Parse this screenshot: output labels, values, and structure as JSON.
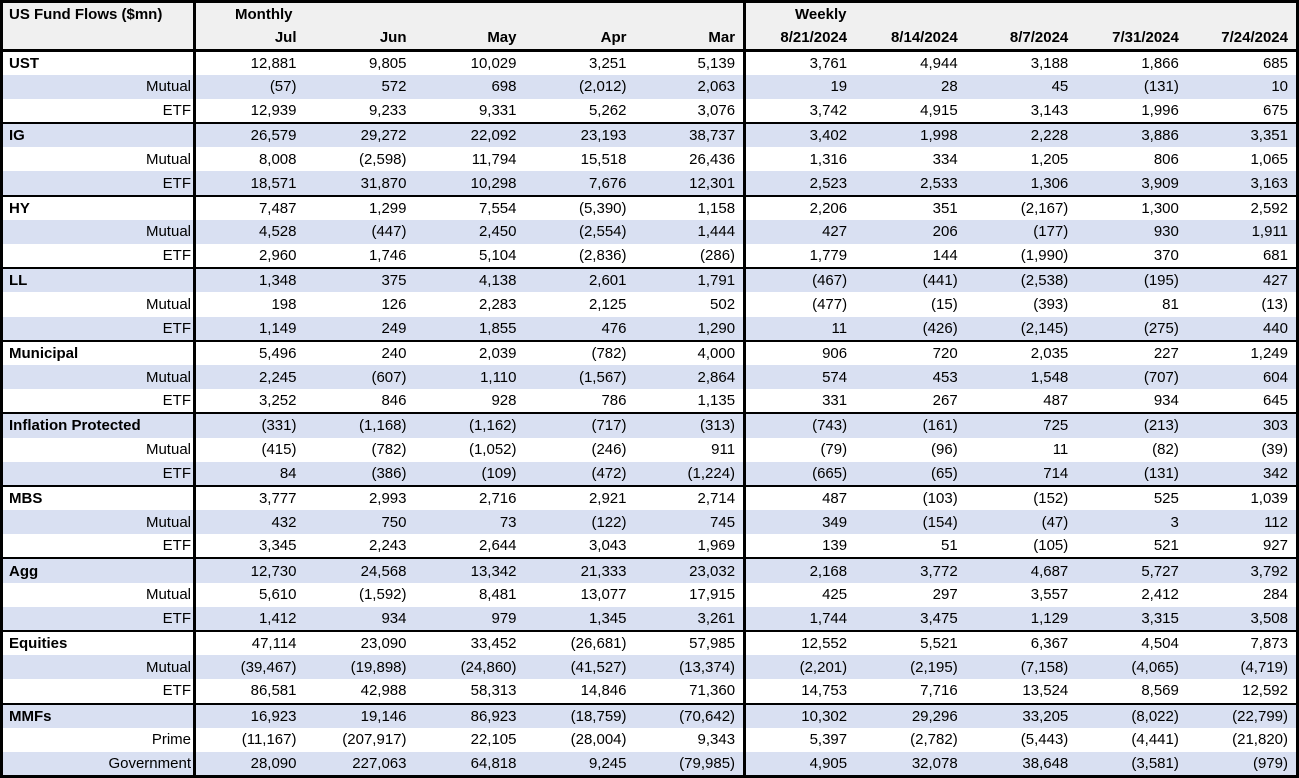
{
  "colors": {
    "stripe": "#d9e0f2",
    "header_bg": "#f0f0f0",
    "border": "#000000"
  },
  "chart_data": {
    "type": "table",
    "title": "US Fund Flows ($mn)",
    "sections": [
      {
        "label": "Monthly",
        "columns": [
          "Jul",
          "Jun",
          "May",
          "Apr",
          "Mar"
        ]
      },
      {
        "label": "Weekly",
        "columns": [
          "8/21/2024",
          "8/14/2024",
          "8/7/2024",
          "7/31/2024",
          "7/24/2024"
        ]
      }
    ],
    "groups": [
      {
        "name": "UST",
        "rows": [
          {
            "label": "UST",
            "values": [
              "12,881",
              "9,805",
              "10,029",
              "3,251",
              "5,139",
              "3,761",
              "4,944",
              "3,188",
              "1,866",
              "685"
            ]
          },
          {
            "label": "Mutual",
            "values": [
              "(57)",
              "572",
              "698",
              "(2,012)",
              "2,063",
              "19",
              "28",
              "45",
              "(131)",
              "10"
            ]
          },
          {
            "label": "ETF",
            "values": [
              "12,939",
              "9,233",
              "9,331",
              "5,262",
              "3,076",
              "3,742",
              "4,915",
              "3,143",
              "1,996",
              "675"
            ]
          }
        ]
      },
      {
        "name": "IG",
        "rows": [
          {
            "label": "IG",
            "values": [
              "26,579",
              "29,272",
              "22,092",
              "23,193",
              "38,737",
              "3,402",
              "1,998",
              "2,228",
              "3,886",
              "3,351"
            ]
          },
          {
            "label": "Mutual",
            "values": [
              "8,008",
              "(2,598)",
              "11,794",
              "15,518",
              "26,436",
              "1,316",
              "334",
              "1,205",
              "806",
              "1,065"
            ]
          },
          {
            "label": "ETF",
            "values": [
              "18,571",
              "31,870",
              "10,298",
              "7,676",
              "12,301",
              "2,523",
              "2,533",
              "1,306",
              "3,909",
              "3,163"
            ]
          }
        ]
      },
      {
        "name": "HY",
        "rows": [
          {
            "label": "HY",
            "values": [
              "7,487",
              "1,299",
              "7,554",
              "(5,390)",
              "1,158",
              "2,206",
              "351",
              "(2,167)",
              "1,300",
              "2,592"
            ]
          },
          {
            "label": "Mutual",
            "values": [
              "4,528",
              "(447)",
              "2,450",
              "(2,554)",
              "1,444",
              "427",
              "206",
              "(177)",
              "930",
              "1,911"
            ]
          },
          {
            "label": "ETF",
            "values": [
              "2,960",
              "1,746",
              "5,104",
              "(2,836)",
              "(286)",
              "1,779",
              "144",
              "(1,990)",
              "370",
              "681"
            ]
          }
        ]
      },
      {
        "name": "LL",
        "rows": [
          {
            "label": "LL",
            "values": [
              "1,348",
              "375",
              "4,138",
              "2,601",
              "1,791",
              "(467)",
              "(441)",
              "(2,538)",
              "(195)",
              "427"
            ]
          },
          {
            "label": "Mutual",
            "values": [
              "198",
              "126",
              "2,283",
              "2,125",
              "502",
              "(477)",
              "(15)",
              "(393)",
              "81",
              "(13)"
            ]
          },
          {
            "label": "ETF",
            "values": [
              "1,149",
              "249",
              "1,855",
              "476",
              "1,290",
              "11",
              "(426)",
              "(2,145)",
              "(275)",
              "440"
            ]
          }
        ]
      },
      {
        "name": "Municipal",
        "rows": [
          {
            "label": "Municipal",
            "values": [
              "5,496",
              "240",
              "2,039",
              "(782)",
              "4,000",
              "906",
              "720",
              "2,035",
              "227",
              "1,249"
            ]
          },
          {
            "label": "Mutual",
            "values": [
              "2,245",
              "(607)",
              "1,110",
              "(1,567)",
              "2,864",
              "574",
              "453",
              "1,548",
              "(707)",
              "604"
            ]
          },
          {
            "label": "ETF",
            "values": [
              "3,252",
              "846",
              "928",
              "786",
              "1,135",
              "331",
              "267",
              "487",
              "934",
              "645"
            ]
          }
        ]
      },
      {
        "name": "Inflation Protected",
        "rows": [
          {
            "label": "Inflation Protected",
            "values": [
              "(331)",
              "(1,168)",
              "(1,162)",
              "(717)",
              "(313)",
              "(743)",
              "(161)",
              "725",
              "(213)",
              "303"
            ]
          },
          {
            "label": "Mutual",
            "values": [
              "(415)",
              "(782)",
              "(1,052)",
              "(246)",
              "911",
              "(79)",
              "(96)",
              "11",
              "(82)",
              "(39)"
            ]
          },
          {
            "label": "ETF",
            "values": [
              "84",
              "(386)",
              "(109)",
              "(472)",
              "(1,224)",
              "(665)",
              "(65)",
              "714",
              "(131)",
              "342"
            ]
          }
        ]
      },
      {
        "name": "MBS",
        "rows": [
          {
            "label": "MBS",
            "values": [
              "3,777",
              "2,993",
              "2,716",
              "2,921",
              "2,714",
              "487",
              "(103)",
              "(152)",
              "525",
              "1,039"
            ]
          },
          {
            "label": "Mutual",
            "values": [
              "432",
              "750",
              "73",
              "(122)",
              "745",
              "349",
              "(154)",
              "(47)",
              "3",
              "112"
            ]
          },
          {
            "label": "ETF",
            "values": [
              "3,345",
              "2,243",
              "2,644",
              "3,043",
              "1,969",
              "139",
              "51",
              "(105)",
              "521",
              "927"
            ]
          }
        ]
      },
      {
        "name": "Agg",
        "rows": [
          {
            "label": "Agg",
            "values": [
              "12,730",
              "24,568",
              "13,342",
              "21,333",
              "23,032",
              "2,168",
              "3,772",
              "4,687",
              "5,727",
              "3,792"
            ]
          },
          {
            "label": "Mutual",
            "values": [
              "5,610",
              "(1,592)",
              "8,481",
              "13,077",
              "17,915",
              "425",
              "297",
              "3,557",
              "2,412",
              "284"
            ]
          },
          {
            "label": "ETF",
            "values": [
              "1,412",
              "934",
              "979",
              "1,345",
              "3,261",
              "1,744",
              "3,475",
              "1,129",
              "3,315",
              "3,508"
            ]
          }
        ]
      },
      {
        "name": "Equities",
        "rows": [
          {
            "label": "Equities",
            "values": [
              "47,114",
              "23,090",
              "33,452",
              "(26,681)",
              "57,985",
              "12,552",
              "5,521",
              "6,367",
              "4,504",
              "7,873"
            ]
          },
          {
            "label": "Mutual",
            "values": [
              "(39,467)",
              "(19,898)",
              "(24,860)",
              "(41,527)",
              "(13,374)",
              "(2,201)",
              "(2,195)",
              "(7,158)",
              "(4,065)",
              "(4,719)"
            ]
          },
          {
            "label": "ETF",
            "values": [
              "86,581",
              "42,988",
              "58,313",
              "14,846",
              "71,360",
              "14,753",
              "7,716",
              "13,524",
              "8,569",
              "12,592"
            ]
          }
        ]
      },
      {
        "name": "MMFs",
        "rows": [
          {
            "label": "MMFs",
            "values": [
              "16,923",
              "19,146",
              "86,923",
              "(18,759)",
              "(70,642)",
              "10,302",
              "29,296",
              "33,205",
              "(8,022)",
              "(22,799)"
            ]
          },
          {
            "label": "Prime",
            "values": [
              "(11,167)",
              "(207,917)",
              "22,105",
              "(28,004)",
              "9,343",
              "5,397",
              "(2,782)",
              "(5,443)",
              "(4,441)",
              "(21,820)"
            ]
          },
          {
            "label": "Government",
            "values": [
              "28,090",
              "227,063",
              "64,818",
              "9,245",
              "(79,985)",
              "4,905",
              "32,078",
              "38,648",
              "(3,581)",
              "(979)"
            ]
          }
        ]
      }
    ]
  }
}
